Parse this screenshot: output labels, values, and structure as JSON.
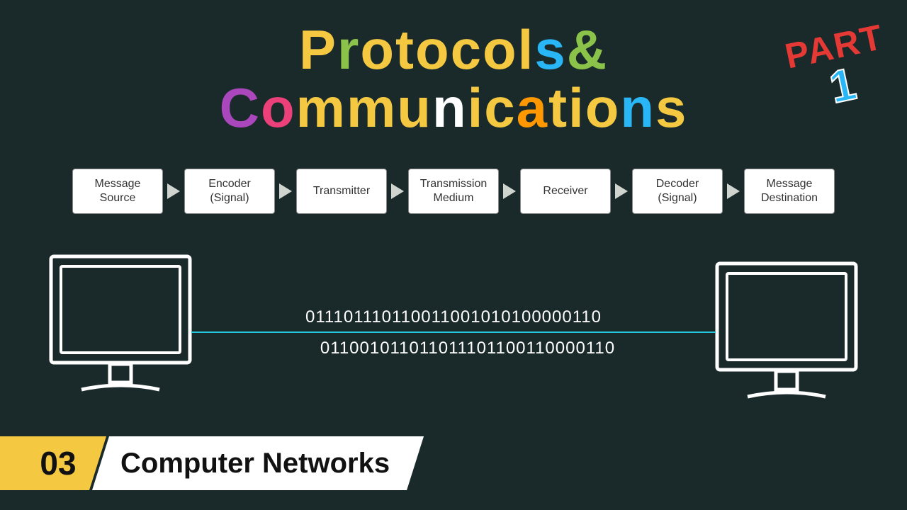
{
  "colors": {
    "background": "#1a2a2a",
    "yellow": "#f5c842",
    "green": "#8bc34a",
    "blue": "#29b6f6",
    "purple": "#ab47bc",
    "pink": "#ec407a",
    "orange": "#ff9800",
    "white": "#ffffff",
    "red": "#e53935",
    "wire": "#26c6da",
    "box_bg": "#ffffff",
    "box_text": "#333333",
    "arrow": "#cfd4cf"
  },
  "title": {
    "line1": {
      "fragments": [
        {
          "text": "P",
          "color": "yellow"
        },
        {
          "text": "r",
          "color": "green"
        },
        {
          "text": "otocol",
          "color": "yellow"
        },
        {
          "text": "s",
          "color": "blue"
        },
        {
          "text": " & ",
          "color": "green"
        }
      ]
    },
    "line2": {
      "fragments": [
        {
          "text": "C",
          "color": "purple"
        },
        {
          "text": "o",
          "color": "pink"
        },
        {
          "text": "mmu",
          "color": "yellow"
        },
        {
          "text": "n",
          "color": "white"
        },
        {
          "text": "ic",
          "color": "yellow"
        },
        {
          "text": "a",
          "color": "orange"
        },
        {
          "text": "tio",
          "color": "yellow"
        },
        {
          "text": "n",
          "color": "blue"
        },
        {
          "text": "s",
          "color": "yellow"
        }
      ]
    },
    "fontsize": 78,
    "fontweight": 900
  },
  "part_badge": {
    "label": "PART",
    "number": "1",
    "label_color": "#e53935",
    "number_color": "#29b6f6",
    "rotation_deg": -12
  },
  "flow": {
    "type": "flowchart",
    "box_style": {
      "bg": "#ffffff",
      "text_color": "#333333",
      "border_color": "#888888",
      "border_radius": 4,
      "fontsize": 16,
      "min_width": 128,
      "min_height": 64
    },
    "arrow_style": {
      "color": "#cfd4cf",
      "width": 18,
      "height": 22
    },
    "nodes": [
      {
        "line1": "Message",
        "line2": "Source"
      },
      {
        "line1": "Encoder",
        "line2": "(Signal)"
      },
      {
        "line1": "Transmitter",
        "line2": ""
      },
      {
        "line1": "Transmission",
        "line2": "Medium"
      },
      {
        "line1": "Receiver",
        "line2": ""
      },
      {
        "line1": "Decoder",
        "line2": "(Signal)"
      },
      {
        "line1": "Message",
        "line2": "Destination"
      }
    ]
  },
  "communication": {
    "binary_top": "011101110110011001010100000110",
    "binary_bottom": "011001011011011101100110000110",
    "binary_fontsize": 24,
    "binary_color": "#ffffff",
    "wire_color": "#26c6da",
    "monitor_stroke": "#ffffff",
    "monitor_stroke_width": 4
  },
  "footer": {
    "number": "03",
    "label": "Computer Networks",
    "number_bg": "#f5c842",
    "label_bg": "#ffffff",
    "text_color": "#111111",
    "number_fontsize": 46,
    "label_fontsize": 40
  }
}
